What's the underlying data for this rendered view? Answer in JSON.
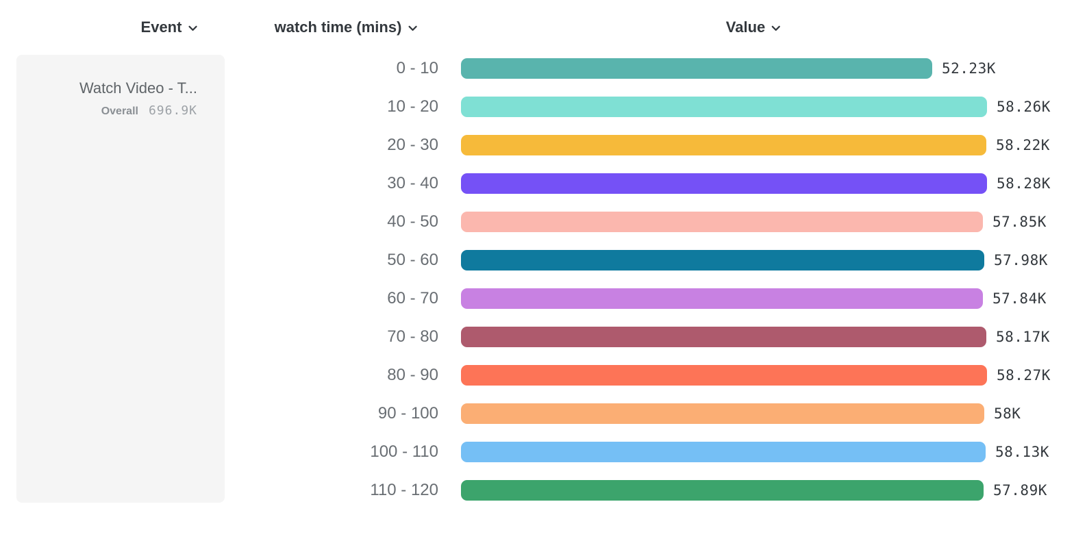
{
  "header": {
    "event_column": "Event",
    "breakdown_column": "watch time (mins)",
    "value_column": "Value"
  },
  "event_panel": {
    "event_name": "Watch Video - T...",
    "overall_label": "Overall",
    "overall_value": "696.9K"
  },
  "icons": {
    "chevron_down": "chevron-down"
  },
  "chart_data": {
    "type": "bar",
    "orientation": "horizontal",
    "breakdown_property": "watch time (mins)",
    "event_name": "Watch Video - T...",
    "overall_total": "696.9K",
    "categories": [
      "0 - 10",
      "10 - 20",
      "20 - 30",
      "30 - 40",
      "40 - 50",
      "50 - 60",
      "60 - 70",
      "70 - 80",
      "80 - 90",
      "90 - 100",
      "100 - 110",
      "110 - 120"
    ],
    "values": [
      52230,
      58260,
      58220,
      58280,
      57850,
      57980,
      57840,
      58170,
      58270,
      58000,
      58130,
      57890
    ],
    "value_labels": [
      "52.23K",
      "58.26K",
      "58.22K",
      "58.28K",
      "57.85K",
      "57.98K",
      "57.84K",
      "58.17K",
      "58.27K",
      "58K",
      "58.13K",
      "57.89K"
    ],
    "colors": [
      "#59b4ad",
      "#7fe0d4",
      "#f6ba3a",
      "#7551f6",
      "#fbb7ae",
      "#0f7a9e",
      "#c881e2",
      "#ae5a6d",
      "#fd7457",
      "#fbae74",
      "#75bff5",
      "#3ca46c"
    ],
    "xlim": [
      0,
      58280
    ],
    "grid": false,
    "legend": "none"
  }
}
